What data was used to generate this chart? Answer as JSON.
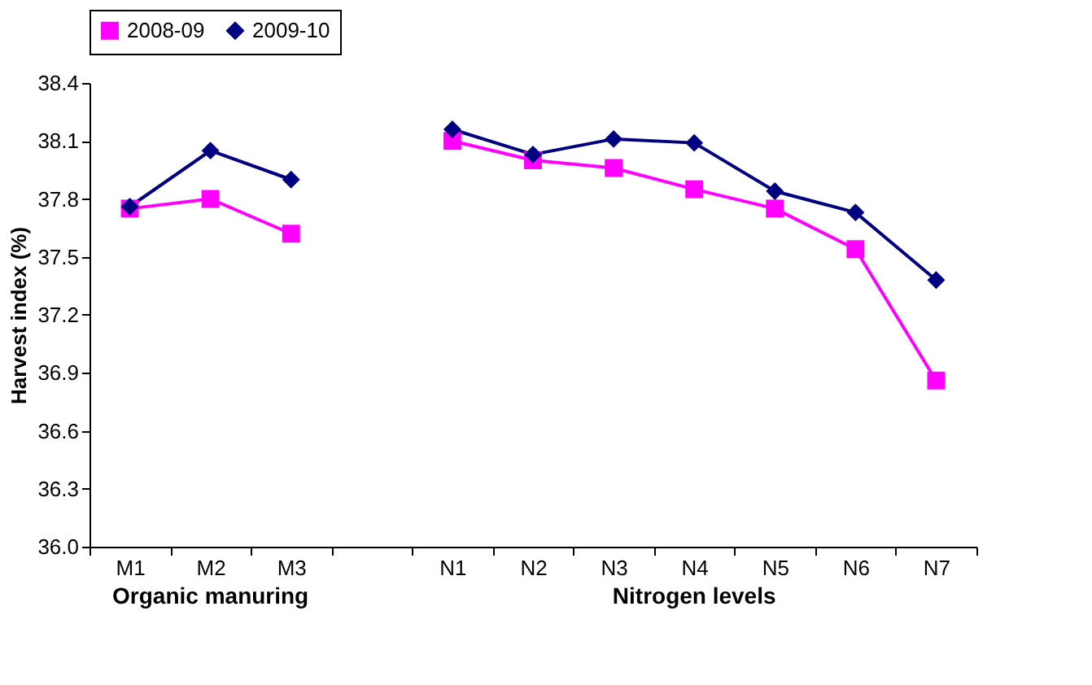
{
  "chart_data": {
    "type": "line",
    "ylabel": "Harvest index (%)",
    "categories": [
      "M1",
      "M2",
      "M3",
      null,
      "N1",
      "N2",
      "N3",
      "N4",
      "N5",
      "N6",
      "N7"
    ],
    "series": [
      {
        "name": "2008-09",
        "color": "#ff00ff",
        "marker": "square",
        "values": [
          37.75,
          37.8,
          37.62,
          null,
          38.1,
          38.0,
          37.96,
          37.85,
          37.75,
          37.54,
          36.86
        ]
      },
      {
        "name": "2009-10",
        "color": "#000080",
        "marker": "diamond",
        "values": [
          37.76,
          38.05,
          37.9,
          null,
          38.16,
          38.03,
          38.11,
          38.09,
          37.84,
          37.73,
          37.38
        ]
      }
    ],
    "ylim": [
      36.0,
      38.4
    ],
    "yticks": [
      {
        "value": 36.0,
        "label": "36.0"
      },
      36.3,
      36.6,
      36.9,
      37.2,
      37.5,
      37.8,
      38.1,
      38.4
    ],
    "annotations": [
      "Organic manuring",
      "Nitrogen levels"
    ],
    "legend": "top",
    "grid": false,
    "line_style": "solid"
  }
}
